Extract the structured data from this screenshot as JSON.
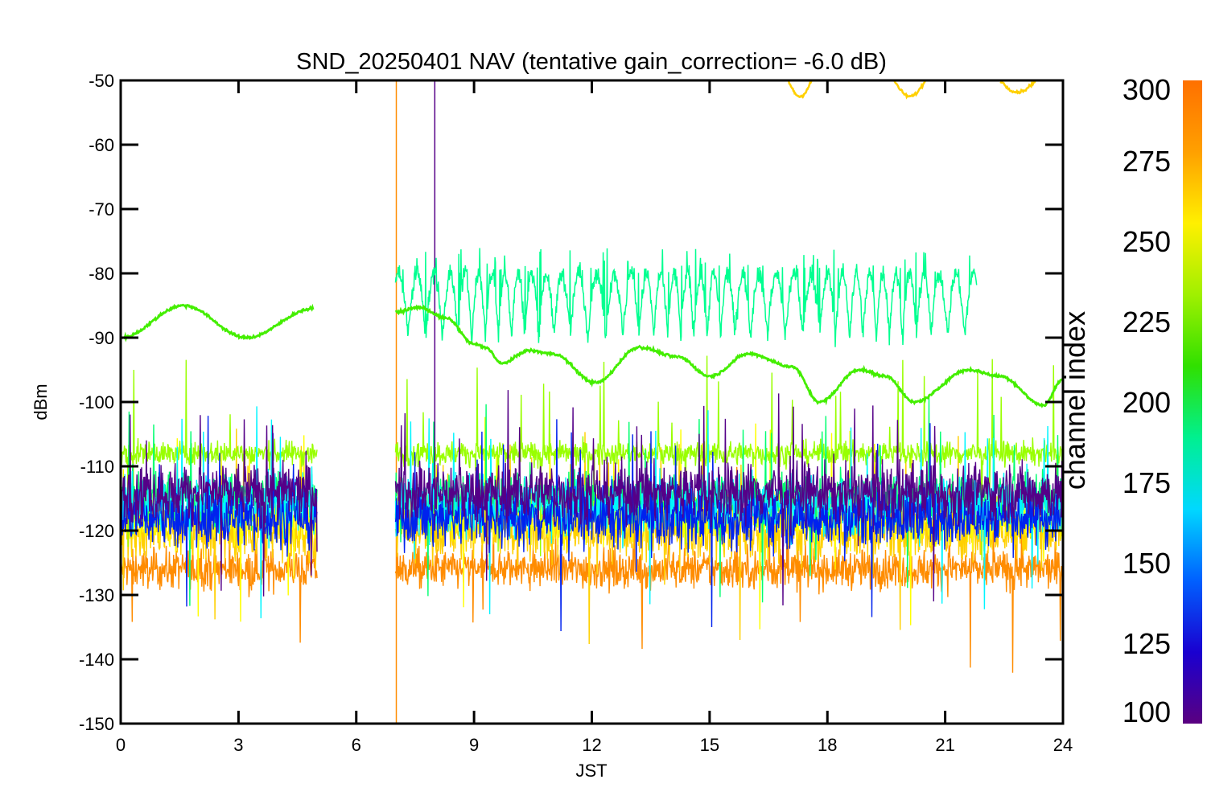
{
  "chart_data": {
    "type": "line",
    "title": "SND_20250401 NAV (tentative gain_correction= -6.0 dB)",
    "xlabel": "JST",
    "ylabel": "dBm",
    "xlim": [
      0,
      24
    ],
    "ylim": [
      -150,
      -50
    ],
    "x_ticks": [
      0,
      3,
      6,
      9,
      12,
      15,
      18,
      21,
      24
    ],
    "y_ticks": [
      -50,
      -60,
      -70,
      -80,
      -90,
      -100,
      -110,
      -120,
      -130,
      -140,
      -150
    ],
    "data_gap": [
      5.0,
      7.0
    ],
    "colorbar": {
      "label": "channel index",
      "range": [
        100,
        300
      ],
      "ticks": [
        100,
        125,
        150,
        175,
        200,
        225,
        250,
        275,
        300
      ],
      "colormap": [
        "#5a0080",
        "#1a00d0",
        "#0060ff",
        "#00d8ff",
        "#00f090",
        "#30e000",
        "#a0f000",
        "#fff000",
        "#ffa000",
        "#ff7000"
      ]
    },
    "series": [
      {
        "color": "#ff8c00",
        "band_center_dBm": -126,
        "band_halfwidth_dB": 4,
        "spikes": [
          [
            7.02,
            -50,
            -150
          ]
        ]
      },
      {
        "color": "#ffd000",
        "band_center_dBm": -120,
        "band_halfwidth_dB": 6,
        "sweeps": [
          [
            17.0,
            17.6,
            -50,
            -52.5
          ],
          [
            19.7,
            20.5,
            -50,
            -52.5
          ],
          [
            22.4,
            23.3,
            -50,
            -51.8
          ]
        ]
      },
      {
        "color": "#ffff00",
        "band_center_dBm": -118,
        "band_halfwidth_dB": 5
      },
      {
        "color": "#99ff00",
        "band_center_dBm": -108,
        "band_halfwidth_dB": 2.5
      },
      {
        "color": "#00ff70",
        "band_center_dBm": -115,
        "band_halfwidth_dB": 5
      },
      {
        "color": "#00f5ff",
        "band_center_dBm": -116,
        "band_halfwidth_dB": 6
      },
      {
        "color": "#0022ee",
        "band_center_dBm": -118,
        "band_halfwidth_dB": 6
      },
      {
        "color": "#550088",
        "band_center_dBm": -114,
        "band_halfwidth_dB": 6,
        "spikes": [
          [
            8.0,
            -50,
            -120
          ]
        ]
      },
      {
        "color": "#00ff90",
        "oscillation": {
          "range": [
            7.0,
            21.8
          ],
          "top_dBm": -80,
          "bottom_dBm": -95
        }
      },
      {
        "color": "#44ee00",
        "line_points": [
          [
            0,
            -90
          ],
          [
            1.6,
            -85
          ],
          [
            3.2,
            -90
          ],
          [
            4.9,
            -85.5
          ],
          [
            7.0,
            -86
          ],
          [
            7.6,
            -85.3
          ],
          [
            8.3,
            -87
          ],
          [
            9.0,
            -91
          ],
          [
            9.3,
            -91.5
          ],
          [
            9.7,
            -94
          ],
          [
            10.4,
            -92
          ],
          [
            11.0,
            -92.5
          ],
          [
            12.1,
            -97
          ],
          [
            13.2,
            -91.5
          ],
          [
            14.2,
            -93
          ],
          [
            15.0,
            -96
          ],
          [
            16.0,
            -92.5
          ],
          [
            17.1,
            -94.5
          ],
          [
            17.8,
            -100
          ],
          [
            18.8,
            -95
          ],
          [
            19.5,
            -96
          ],
          [
            20.2,
            -100
          ],
          [
            21.6,
            -95
          ],
          [
            22.4,
            -96
          ],
          [
            23.5,
            -100.5
          ],
          [
            24.0,
            -96.5
          ]
        ]
      }
    ]
  }
}
